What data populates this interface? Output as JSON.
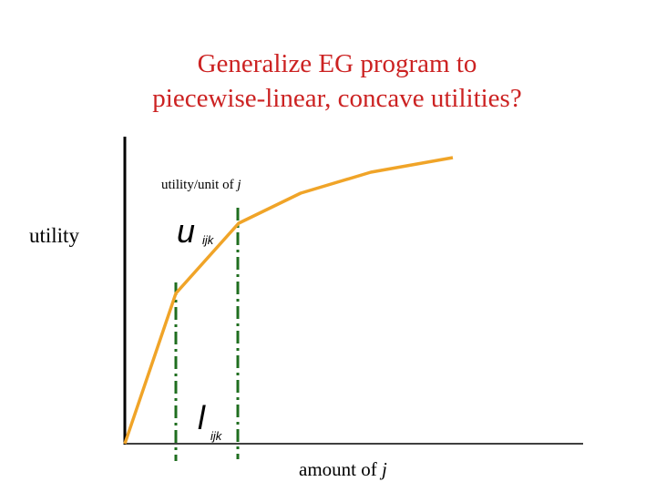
{
  "title": {
    "line1": "Generalize EG program to",
    "line2": "piecewise-linear, concave utilities?"
  },
  "diagram": {
    "slope_label": {
      "text": "utility/unit of",
      "var": "j"
    },
    "y_label": "utility",
    "u_label": {
      "symbol": "u",
      "sub": "ijk"
    },
    "l_label": {
      "symbol": "l",
      "sub": "ijk"
    },
    "x_label": {
      "text": "amount of",
      "var": "j"
    }
  }
}
